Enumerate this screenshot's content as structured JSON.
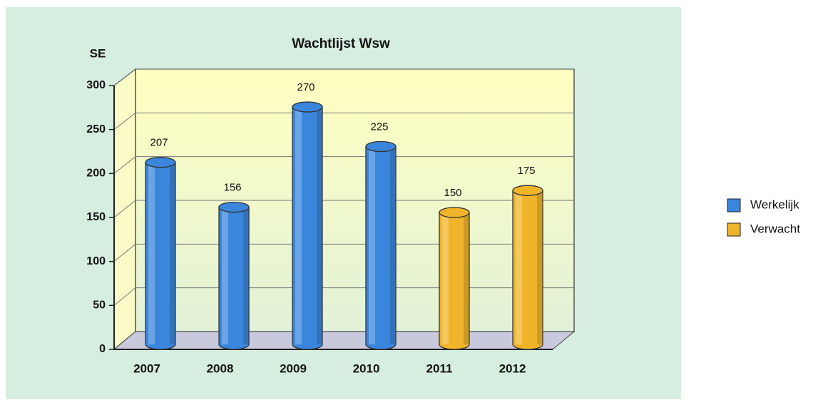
{
  "chart_data": {
    "type": "bar3d",
    "title": "Wachtlijst Wsw",
    "y_label": "SE",
    "categories": [
      "2007",
      "2008",
      "2009",
      "2010",
      "2011",
      "2012"
    ],
    "series": [
      {
        "name": "Werkelijk",
        "color": "#3a86dc",
        "values": [
          207,
          156,
          270,
          225,
          null,
          null
        ]
      },
      {
        "name": "Verwacht",
        "color": "#f0b42a",
        "values": [
          null,
          null,
          null,
          null,
          150,
          175
        ]
      }
    ],
    "ylim": [
      0,
      300
    ],
    "yticks": [
      0,
      50,
      100,
      150,
      200,
      250,
      300
    ],
    "grid": true,
    "legend": "right"
  }
}
